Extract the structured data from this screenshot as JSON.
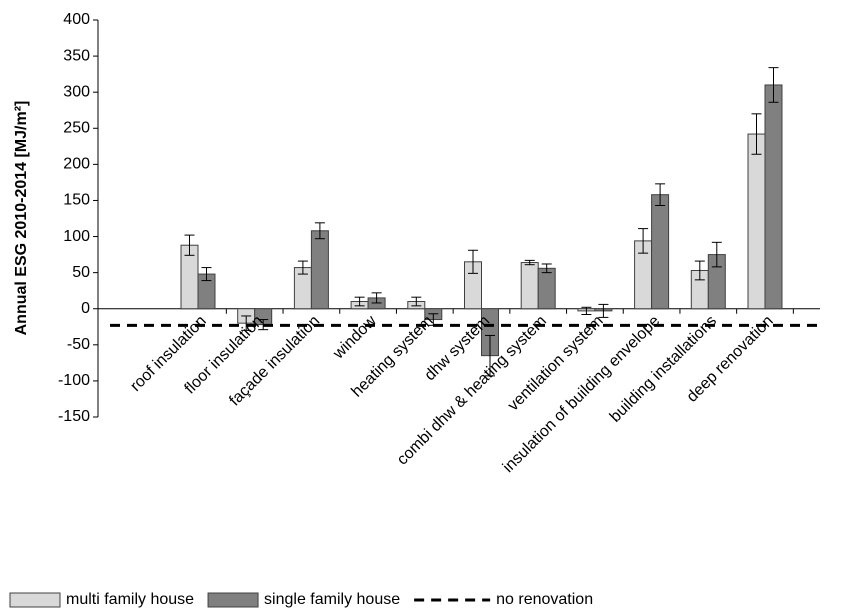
{
  "chart_data": {
    "type": "bar",
    "ylabel": "Annual ESG  2010-2014 [MJ/m²]",
    "categories": [
      "roof insulation",
      "floor insulation",
      "façade insulation",
      "window",
      "heating system",
      "dhw system",
      "combi dhw & heating system",
      "ventilation system",
      "insulation of building envelope",
      "building installations",
      "deep renovation"
    ],
    "series": [
      {
        "name": "multi family house",
        "color": "#d9d9d9",
        "values": [
          88,
          -20,
          57,
          10,
          10,
          65,
          64,
          -3,
          94,
          53,
          242
        ],
        "errors": [
          14,
          10,
          9,
          6,
          6,
          16,
          3,
          5,
          17,
          13,
          28
        ]
      },
      {
        "name": "single family house",
        "color": "#808080",
        "values": [
          48,
          -22,
          108,
          15,
          -15,
          -65,
          56,
          -3,
          158,
          75,
          310
        ],
        "errors": [
          9,
          7,
          11,
          7,
          8,
          28,
          6,
          9,
          15,
          17,
          24
        ]
      }
    ],
    "reference_line": {
      "name": "no renovation",
      "value": -23,
      "color": "#000000"
    },
    "ylim": [
      -150,
      400
    ],
    "yticks": [
      -150,
      -100,
      -50,
      0,
      50,
      100,
      150,
      200,
      250,
      300,
      350,
      400
    ],
    "grid": false,
    "legend": "bottom"
  }
}
